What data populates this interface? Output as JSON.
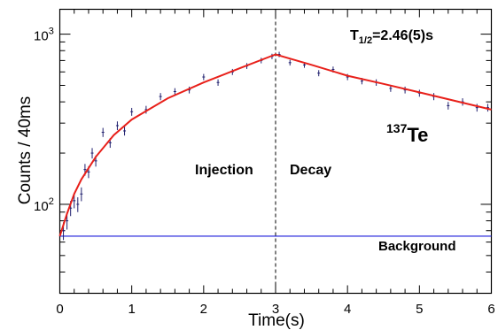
{
  "chart_data": {
    "type": "scatter",
    "xlabel": "Time(s)",
    "ylabel": "Counts / 40ms",
    "xlim": [
      0,
      6
    ],
    "ylim": [
      30,
      1400
    ],
    "y_scale": "log",
    "x_ticks": [
      "0",
      "1",
      "2",
      "3",
      "4",
      "5",
      "6"
    ],
    "y_ticks": [
      {
        "value": 100,
        "base": "10",
        "exp": "2"
      },
      {
        "value": 1000,
        "base": "10",
        "exp": "3"
      }
    ],
    "grid": false,
    "half_life": {
      "label": "T",
      "sub": "1/2",
      "value": "=2.46(5)s"
    },
    "isotope": {
      "mass": "137",
      "symbol": "Te",
      "color": "#e8201a"
    },
    "phase_labels": [
      "Injection",
      "Decay"
    ],
    "phase_boundary_x": 3,
    "background": {
      "label": "Background",
      "value": 65,
      "color": "#1a1adb"
    },
    "fit": {
      "color": "#e8201a",
      "x": [
        0,
        0.1,
        0.2,
        0.3,
        0.5,
        0.75,
        1.0,
        1.5,
        2.0,
        2.5,
        3.0,
        3.5,
        4.0,
        4.5,
        5.0,
        5.5,
        6.0
      ],
      "y": [
        65,
        88,
        115,
        140,
        190,
        255,
        315,
        420,
        520,
        630,
        760,
        660,
        570,
        510,
        455,
        405,
        360
      ]
    },
    "series": [
      {
        "marker_color": "#1f1f6e",
        "x": [
          0.05,
          0.1,
          0.15,
          0.2,
          0.25,
          0.3,
          0.35,
          0.4,
          0.45,
          0.5,
          0.6,
          0.7,
          0.8,
          0.9,
          1.0,
          1.2,
          1.4,
          1.6,
          1.8,
          2.0,
          2.2,
          2.4,
          2.6,
          2.8,
          2.95,
          3.05,
          3.2,
          3.4,
          3.6,
          3.8,
          4.0,
          4.2,
          4.4,
          4.6,
          4.8,
          5.0,
          5.2,
          5.4,
          5.6,
          5.8,
          5.95
        ],
        "y": [
          70,
          80,
          95,
          105,
          100,
          115,
          160,
          155,
          200,
          180,
          265,
          230,
          290,
          270,
          350,
          360,
          430,
          460,
          470,
          560,
          520,
          600,
          650,
          700,
          740,
          760,
          680,
          660,
          590,
          620,
          560,
          530,
          520,
          480,
          470,
          450,
          430,
          380,
          400,
          370,
          370
        ]
      }
    ]
  }
}
